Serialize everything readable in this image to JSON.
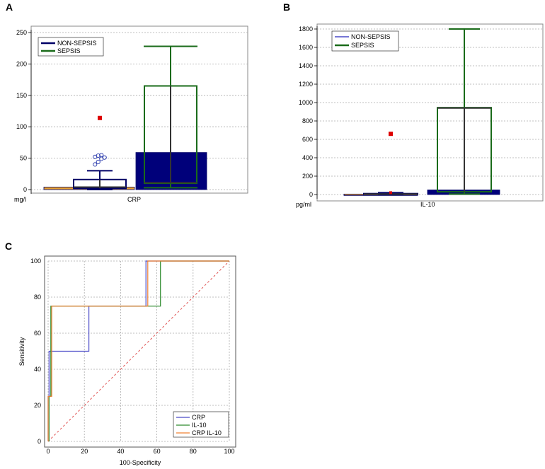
{
  "panel_labels": [
    "A",
    "B",
    "C"
  ],
  "chart_data": [
    {
      "type": "box",
      "panel": "A",
      "category": "CRP",
      "unit": "mg/l",
      "ylim": [
        0,
        250
      ],
      "yticks": [
        0,
        50,
        100,
        150,
        200,
        250
      ],
      "grid": true,
      "legend_position": "top-left",
      "series": [
        {
          "name": "NON-SEPSIS",
          "color": "#000066",
          "min": 0,
          "q1": 2,
          "median": 4,
          "q3": 16,
          "max": 30,
          "outliers": [
            40,
            44,
            49,
            51,
            52,
            54,
            55
          ],
          "mean_marker": 114,
          "mean_bar": 4
        },
        {
          "name": "SEPSIS",
          "color": "#1a6b1a",
          "min": 3,
          "q1": 10,
          "median": 11,
          "q3": 165,
          "max": 228,
          "outliers": [],
          "mean_marker": null,
          "mean_bar": 59
        }
      ]
    },
    {
      "type": "box",
      "panel": "B",
      "category": "IL-10",
      "unit": "pg/ml",
      "ylim": [
        0,
        1800
      ],
      "yticks": [
        0,
        200,
        400,
        600,
        800,
        1000,
        1200,
        1400,
        1600,
        1800
      ],
      "grid": true,
      "legend_position": "top-left",
      "series": [
        {
          "name": "NON-SEPSIS",
          "color": "#000066",
          "min": 0,
          "q1": 2,
          "median": 5,
          "q3": 10,
          "max": 20,
          "outliers": [],
          "mean_marker": 660,
          "mean_marker2": 20,
          "mean_bar": 5
        },
        {
          "name": "SEPSIS",
          "color": "#1a6b1a",
          "min": 5,
          "q1": 30,
          "median": 940,
          "q3": 945,
          "max": 1800,
          "outliers": [],
          "mean_marker": null,
          "mean_bar": 50
        }
      ]
    },
    {
      "type": "line",
      "panel": "C",
      "xlabel": "100-Specificity",
      "ylabel": "Sensitivity",
      "xlim": [
        0,
        100
      ],
      "ylim": [
        0,
        100
      ],
      "xticks": [
        0,
        20,
        40,
        60,
        80,
        100
      ],
      "yticks": [
        0,
        20,
        40,
        60,
        80,
        100
      ],
      "grid": true,
      "legend_position": "bottom-right",
      "series": [
        {
          "name": "CRP",
          "color": "#4a4ac8",
          "x": [
            0,
            0,
            0.5,
            0.5,
            22.5,
            22.5,
            54,
            54,
            100
          ],
          "y": [
            0,
            25,
            25,
            50,
            50,
            75,
            75,
            100,
            100
          ]
        },
        {
          "name": "IL-10",
          "color": "#2e8b2e",
          "x": [
            0.5,
            0.5,
            1.5,
            1.5,
            62,
            62,
            100
          ],
          "y": [
            0,
            25,
            25,
            75,
            75,
            100,
            100
          ]
        },
        {
          "name": "CRP IL-10",
          "color": "#f08030",
          "x": [
            0,
            0,
            2,
            2,
            55,
            55,
            100
          ],
          "y": [
            0,
            25,
            25,
            75,
            75,
            100,
            100
          ]
        }
      ],
      "reference_line": {
        "x": [
          0,
          100
        ],
        "y": [
          0,
          100
        ],
        "color": "#e05050"
      }
    }
  ]
}
